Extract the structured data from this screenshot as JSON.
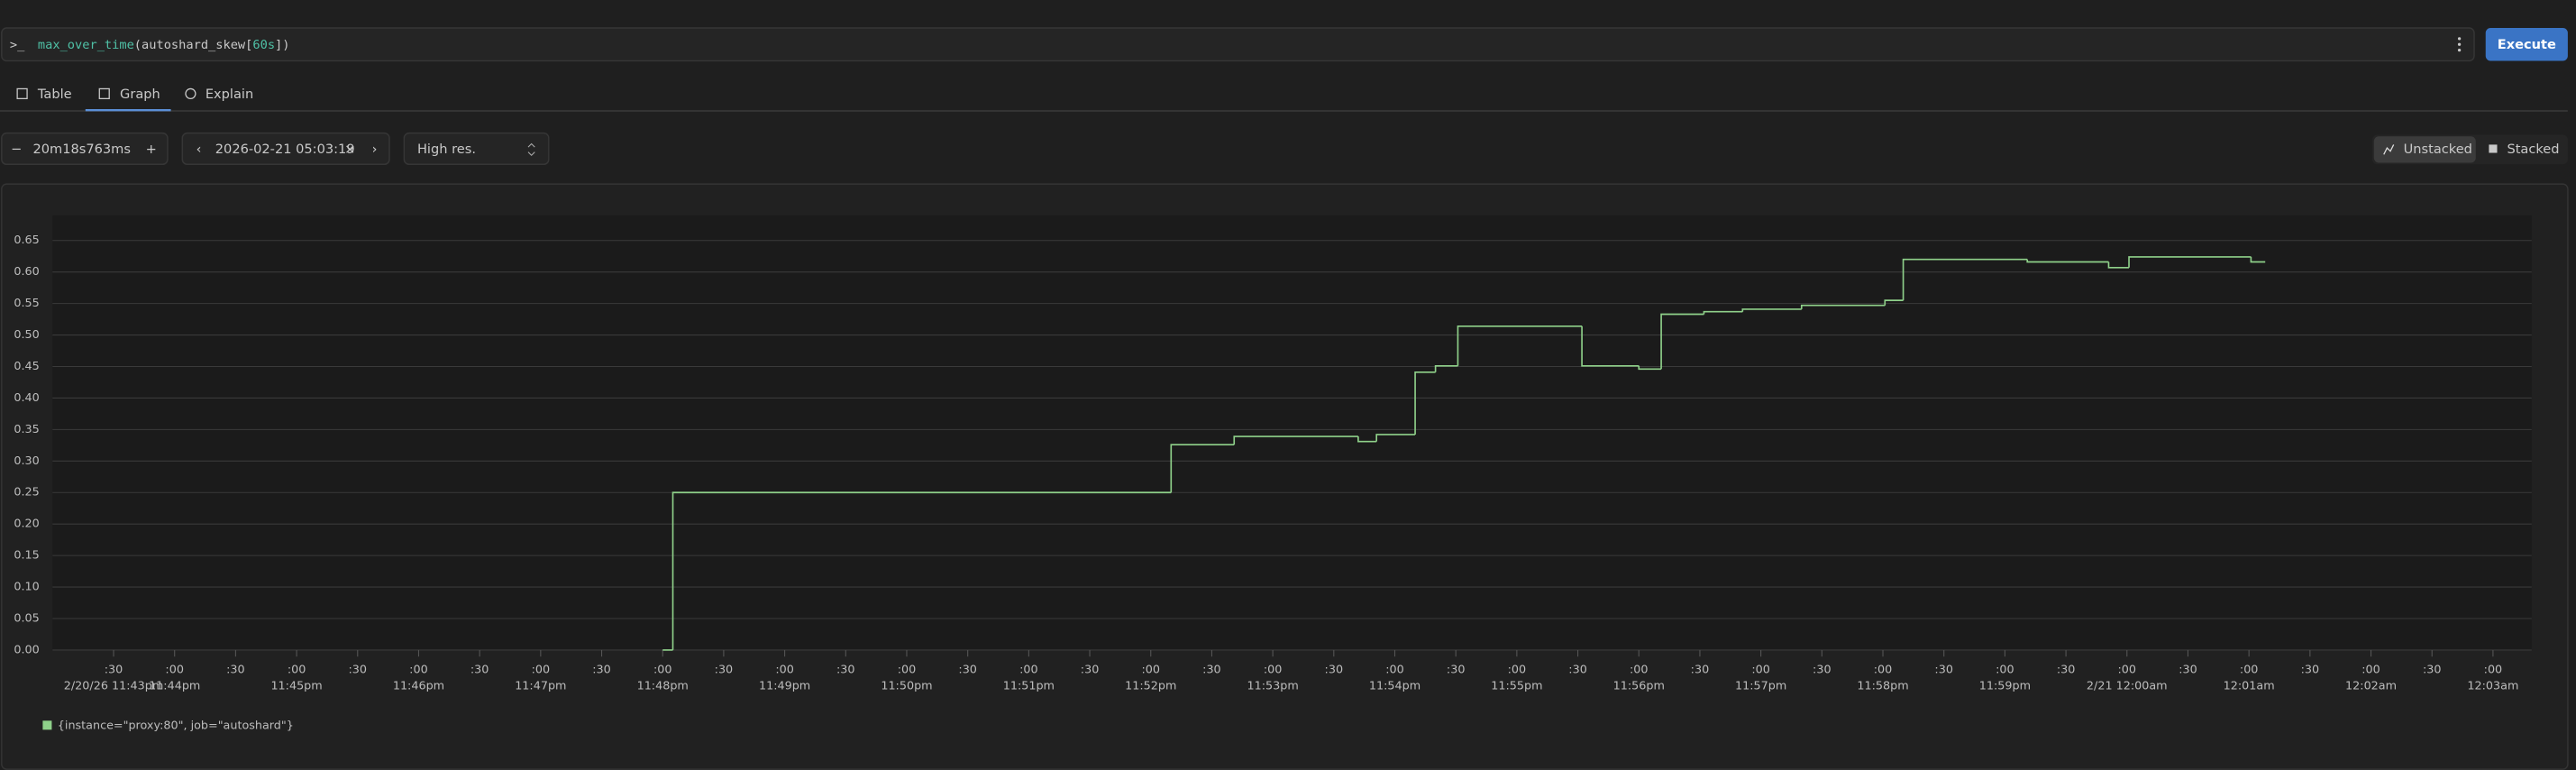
{
  "query": {
    "prompt": ">_",
    "tokens": [
      "max_over_time",
      "(",
      "autoshard_skew",
      "[",
      "60s",
      "])"
    ],
    "button": "Execute"
  },
  "tabs": [
    "Table",
    "Graph",
    "Explain"
  ],
  "controls": {
    "range": "20m18s763ms",
    "end_time": "2026-02-21 05:03:19",
    "resolution": "High res.",
    "modes": [
      "Unstacked",
      "Stacked"
    ]
  },
  "chart_data": {
    "type": "step-line",
    "x": [
      "2026-02-20T23:48:00",
      "2026-02-20T23:48:05",
      "2026-02-20T23:52:10",
      "2026-02-20T23:52:41",
      "2026-02-20T23:53:42",
      "2026-02-20T23:53:51",
      "2026-02-20T23:54:10",
      "2026-02-20T23:54:20",
      "2026-02-20T23:54:31",
      "2026-02-20T23:55:32",
      "2026-02-20T23:56:00",
      "2026-02-20T23:56:11",
      "2026-02-20T23:56:32",
      "2026-02-20T23:56:51",
      "2026-02-20T23:57:20",
      "2026-02-20T23:58:01",
      "2026-02-20T23:58:10",
      "2026-02-20T23:59:11",
      "2026-02-20T23:59:51",
      "2026-02-21T00:00:01",
      "2026-02-21T00:01:01",
      "2026-02-21T00:01:08"
    ],
    "series": [
      {
        "name": "{instance=\"proxy:80\", job=\"autoshard\"}",
        "color": "#8fd18a",
        "values": [
          0,
          0.25,
          0.326,
          0.339,
          0.331,
          0.342,
          0.441,
          0.451,
          0.514,
          0.451,
          0.446,
          0.533,
          0.537,
          0.541,
          0.547,
          0.555,
          0.62,
          0.616,
          0.607,
          0.624,
          0.616,
          0.616
        ]
      }
    ],
    "xlim": [
      "2026-02-20T23:43:00",
      "2026-02-21T00:03:19"
    ],
    "xticks": [
      {
        "value": "2026-02-20T23:43:30",
        "label": ":30"
      },
      {
        "value": "2026-02-20T23:44:00",
        "label": ":00"
      },
      {
        "value": "2026-02-20T23:44:30",
        "label": ":30"
      },
      {
        "value": "2026-02-20T23:45:00",
        "label": ":00"
      },
      {
        "value": "2026-02-20T23:45:30",
        "label": ":30"
      },
      {
        "value": "2026-02-20T23:46:00",
        "label": ":00"
      },
      {
        "value": "2026-02-20T23:46:30",
        "label": ":30"
      },
      {
        "value": "2026-02-20T23:47:00",
        "label": ":00"
      },
      {
        "value": "2026-02-20T23:47:30",
        "label": ":30"
      },
      {
        "value": "2026-02-20T23:48:00",
        "label": ":00"
      },
      {
        "value": "2026-02-20T23:48:30",
        "label": ":30"
      },
      {
        "value": "2026-02-20T23:49:00",
        "label": ":00"
      },
      {
        "value": "2026-02-20T23:49:30",
        "label": ":30"
      },
      {
        "value": "2026-02-20T23:50:00",
        "label": ":00"
      },
      {
        "value": "2026-02-20T23:50:30",
        "label": ":30"
      },
      {
        "value": "2026-02-20T23:51:00",
        "label": ":00"
      },
      {
        "value": "2026-02-20T23:51:30",
        "label": ":30"
      },
      {
        "value": "2026-02-20T23:52:00",
        "label": ":00"
      },
      {
        "value": "2026-02-20T23:52:30",
        "label": ":30"
      },
      {
        "value": "2026-02-20T23:53:00",
        "label": ":00"
      },
      {
        "value": "2026-02-20T23:53:30",
        "label": ":30"
      },
      {
        "value": "2026-02-20T23:54:00",
        "label": ":00"
      },
      {
        "value": "2026-02-20T23:54:30",
        "label": ":30"
      },
      {
        "value": "2026-02-20T23:55:00",
        "label": ":00"
      },
      {
        "value": "2026-02-20T23:55:30",
        "label": ":30"
      },
      {
        "value": "2026-02-20T23:56:00",
        "label": ":00"
      },
      {
        "value": "2026-02-20T23:56:30",
        "label": ":30"
      },
      {
        "value": "2026-02-20T23:57:00",
        "label": ":00"
      },
      {
        "value": "2026-02-20T23:57:30",
        "label": ":30"
      },
      {
        "value": "2026-02-20T23:58:00",
        "label": ":00"
      },
      {
        "value": "2026-02-20T23:58:30",
        "label": ":30"
      },
      {
        "value": "2026-02-20T23:59:00",
        "label": ":00"
      },
      {
        "value": "2026-02-20T23:59:30",
        "label": ":30"
      },
      {
        "value": "2026-02-21T00:00:00",
        "label": ":00"
      },
      {
        "value": "2026-02-21T00:00:30",
        "label": ":30"
      },
      {
        "value": "2026-02-21T00:01:00",
        "label": ":00"
      },
      {
        "value": "2026-02-21T00:01:30",
        "label": ":30"
      },
      {
        "value": "2026-02-21T00:02:00",
        "label": ":00"
      },
      {
        "value": "2026-02-21T00:02:30",
        "label": ":30"
      },
      {
        "value": "2026-02-21T00:03:00",
        "label": ":00"
      }
    ],
    "xtick_dates": [
      {
        "value": "2026-02-20T23:43:30",
        "label": "2/20/26 11:43pm"
      },
      {
        "value": "2026-02-20T23:44:00",
        "label": "11:44pm"
      },
      {
        "value": "2026-02-20T23:45:00",
        "label": "11:45pm"
      },
      {
        "value": "2026-02-20T23:46:00",
        "label": "11:46pm"
      },
      {
        "value": "2026-02-20T23:47:00",
        "label": "11:47pm"
      },
      {
        "value": "2026-02-20T23:48:00",
        "label": "11:48pm"
      },
      {
        "value": "2026-02-20T23:49:00",
        "label": "11:49pm"
      },
      {
        "value": "2026-02-20T23:50:00",
        "label": "11:50pm"
      },
      {
        "value": "2026-02-20T23:51:00",
        "label": "11:51pm"
      },
      {
        "value": "2026-02-20T23:52:00",
        "label": "11:52pm"
      },
      {
        "value": "2026-02-20T23:53:00",
        "label": "11:53pm"
      },
      {
        "value": "2026-02-20T23:54:00",
        "label": "11:54pm"
      },
      {
        "value": "2026-02-20T23:55:00",
        "label": "11:55pm"
      },
      {
        "value": "2026-02-20T23:56:00",
        "label": "11:56pm"
      },
      {
        "value": "2026-02-20T23:57:00",
        "label": "11:57pm"
      },
      {
        "value": "2026-02-20T23:58:00",
        "label": "11:58pm"
      },
      {
        "value": "2026-02-20T23:59:00",
        "label": "11:59pm"
      },
      {
        "value": "2026-02-21T00:00:00",
        "label": "2/21 12:00am"
      },
      {
        "value": "2026-02-21T00:01:00",
        "label": "12:01am"
      },
      {
        "value": "2026-02-21T00:02:00",
        "label": "12:02am"
      },
      {
        "value": "2026-02-21T00:03:00",
        "label": "12:03am"
      }
    ],
    "ylim": [
      0,
      0.69
    ],
    "yticks": [
      {
        "value": 0,
        "label": "0.00"
      },
      {
        "value": 0.05,
        "label": "0.05"
      },
      {
        "value": 0.1,
        "label": "0.10"
      },
      {
        "value": 0.15,
        "label": "0.15"
      },
      {
        "value": 0.2,
        "label": "0.20"
      },
      {
        "value": 0.25,
        "label": "0.25"
      },
      {
        "value": 0.3,
        "label": "0.30"
      },
      {
        "value": 0.35,
        "label": "0.35"
      },
      {
        "value": 0.4,
        "label": "0.40"
      },
      {
        "value": 0.45,
        "label": "0.45"
      },
      {
        "value": 0.5,
        "label": "0.50"
      },
      {
        "value": 0.55,
        "label": "0.55"
      },
      {
        "value": 0.6,
        "label": "0.60"
      },
      {
        "value": 0.65,
        "label": "0.65"
      }
    ],
    "grid": true
  }
}
